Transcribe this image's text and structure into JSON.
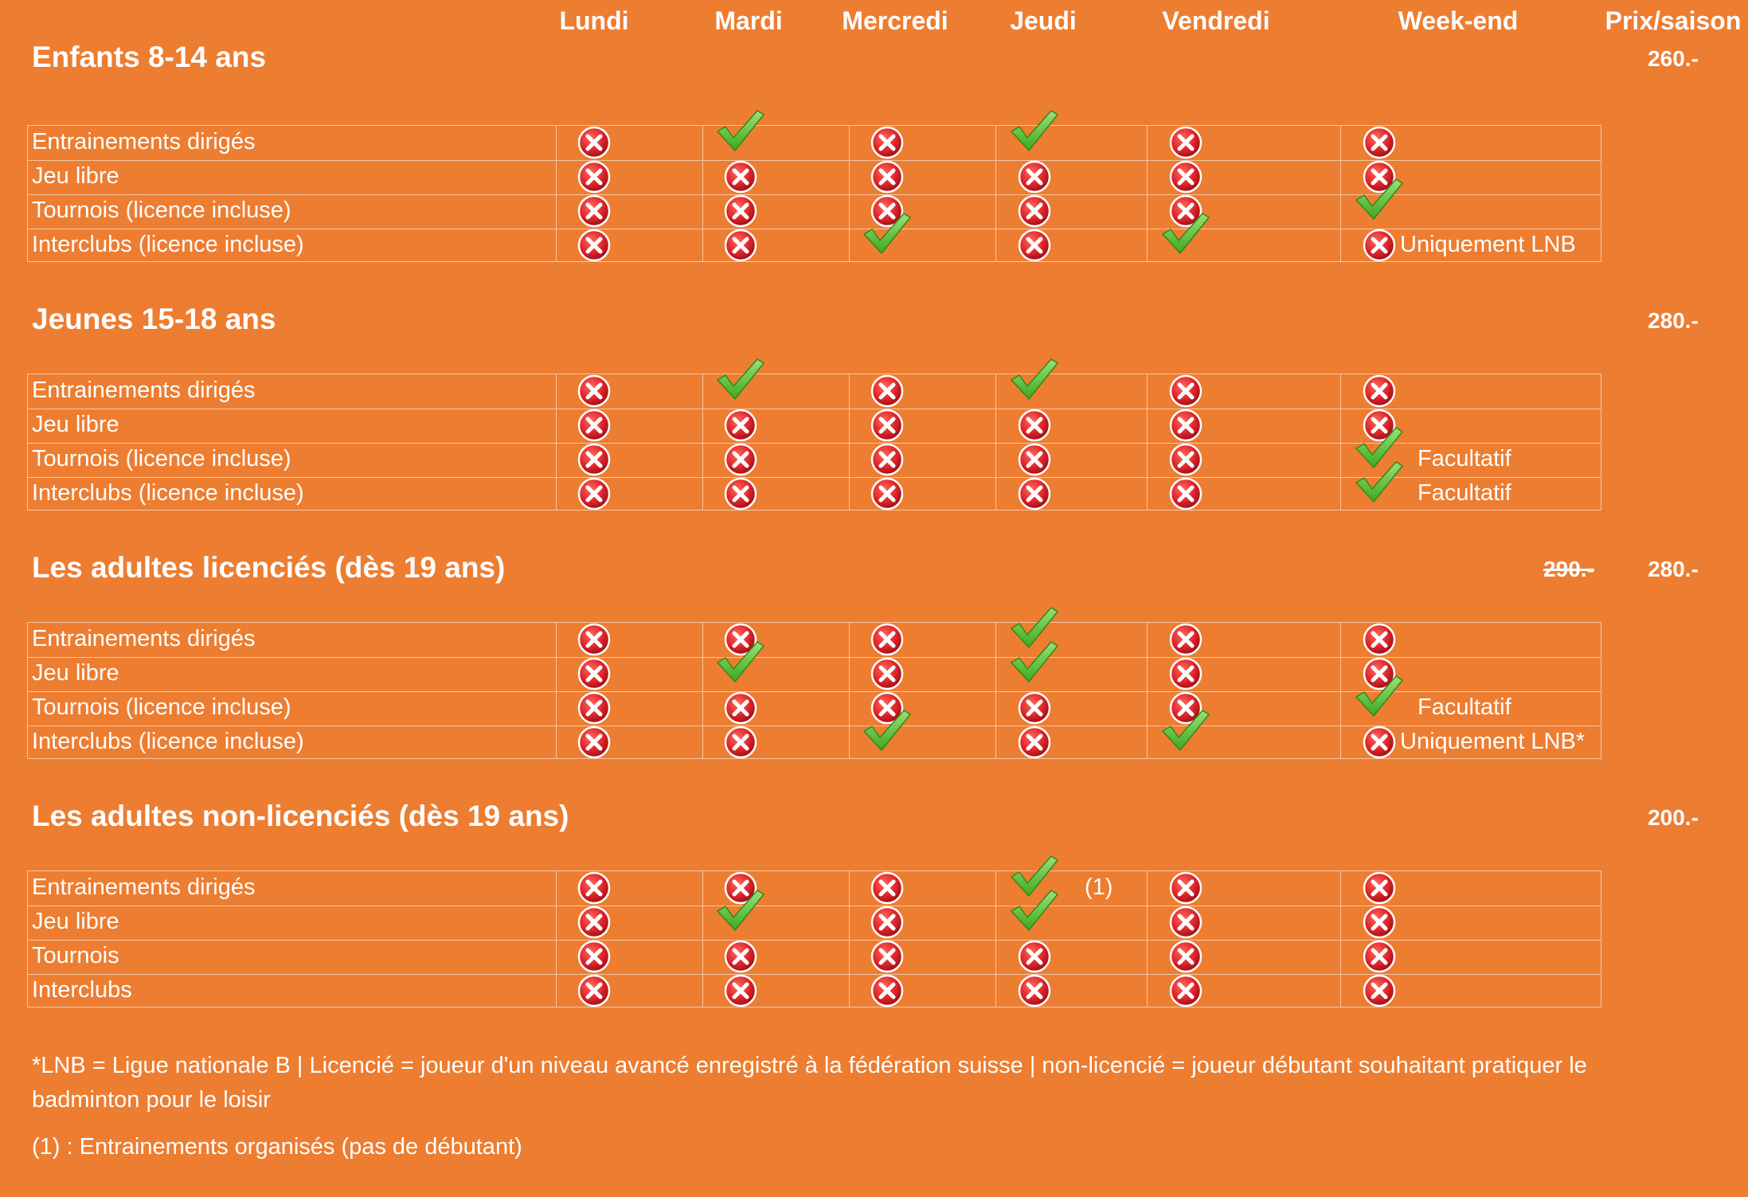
{
  "days": [
    "Lundi",
    "Mardi",
    "Mercredi",
    "Jeudi",
    "Vendredi",
    "Week-end"
  ],
  "price_header": "Prix/saison",
  "sections": [
    {
      "title": "Enfants 8-14 ans",
      "price": "260.-",
      "old_price": "",
      "rows": [
        {
          "label": "Entrainements dirigés",
          "cells": [
            "x",
            "check",
            "x",
            "check",
            "x",
            "x"
          ],
          "note": "",
          "note_day": null
        },
        {
          "label": "Jeu libre",
          "cells": [
            "x",
            "x",
            "x",
            "x",
            "x",
            "x"
          ],
          "note": "",
          "note_day": null
        },
        {
          "label": "Tournois (licence incluse)",
          "cells": [
            "x",
            "x",
            "x",
            "x",
            "x",
            "check"
          ],
          "note": "",
          "note_day": null
        },
        {
          "label": "Interclubs  (licence incluse)",
          "cells": [
            "x",
            "x",
            "check",
            "x",
            "check",
            "x"
          ],
          "note": "Uniquement LNB",
          "note_day": 5
        }
      ]
    },
    {
      "title": "Jeunes 15-18 ans",
      "price": "280.-",
      "old_price": "",
      "rows": [
        {
          "label": "Entrainements dirigés",
          "cells": [
            "x",
            "check",
            "x",
            "check",
            "x",
            "x"
          ],
          "note": "",
          "note_day": null
        },
        {
          "label": "Jeu libre",
          "cells": [
            "x",
            "x",
            "x",
            "x",
            "x",
            "x"
          ],
          "note": "",
          "note_day": null
        },
        {
          "label": "Tournois (licence incluse)",
          "cells": [
            "x",
            "x",
            "x",
            "x",
            "x",
            "check"
          ],
          "note": "Facultatif",
          "note_day": 5
        },
        {
          "label": "Interclubs  (licence incluse)",
          "cells": [
            "x",
            "x",
            "x",
            "x",
            "x",
            "check"
          ],
          "note": "Facultatif",
          "note_day": 5
        }
      ]
    },
    {
      "title": "Les adultes licenciés (dès 19 ans)",
      "price": "280.-",
      "old_price": "290.-",
      "rows": [
        {
          "label": "Entrainements dirigés",
          "cells": [
            "x",
            "x",
            "x",
            "check",
            "x",
            "x"
          ],
          "note": "",
          "note_day": null
        },
        {
          "label": "Jeu libre",
          "cells": [
            "x",
            "check",
            "x",
            "check",
            "x",
            "x"
          ],
          "note": "",
          "note_day": null
        },
        {
          "label": "Tournois (licence incluse)",
          "cells": [
            "x",
            "x",
            "x",
            "x",
            "x",
            "check"
          ],
          "note": "Facultatif",
          "note_day": 5
        },
        {
          "label": "Interclubs  (licence incluse)",
          "cells": [
            "x",
            "x",
            "check",
            "x",
            "check",
            "x"
          ],
          "note": "Uniquement LNB*",
          "note_day": 5
        }
      ]
    },
    {
      "title": "Les adultes non-licenciés  (dès 19 ans)",
      "price": "200.-",
      "old_price": "",
      "rows": [
        {
          "label": "Entrainements dirigés",
          "cells": [
            "x",
            "x",
            "x",
            "check",
            "x",
            "x"
          ],
          "note": "(1)",
          "note_day": 3
        },
        {
          "label": "Jeu libre",
          "cells": [
            "x",
            "check",
            "x",
            "check",
            "x",
            "x"
          ],
          "note": "",
          "note_day": null
        },
        {
          "label": "Tournois",
          "cells": [
            "x",
            "x",
            "x",
            "x",
            "x",
            "x"
          ],
          "note": "",
          "note_day": null
        },
        {
          "label": "Interclubs",
          "cells": [
            "x",
            "x",
            "x",
            "x",
            "x",
            "x"
          ],
          "note": "",
          "note_day": null
        }
      ]
    }
  ],
  "footnotes": [
    "*LNB = Ligue nationale  B  | Licencié = joueur d'un niveau avancé enregistré à la fédération suisse | non-licencié = joueur débutant souhaitant pratiquer le",
    "badminton pour le loisir",
    "(1) : Entrainements organisés (pas de débutant)"
  ],
  "colors": {
    "background": "#ed7d31",
    "grid": "#f6c6a4",
    "cross_fill": "#e0262c",
    "check_fill": "#5cc134"
  },
  "icons": {
    "x": "cross-circle-icon",
    "check": "checkmark-icon"
  }
}
